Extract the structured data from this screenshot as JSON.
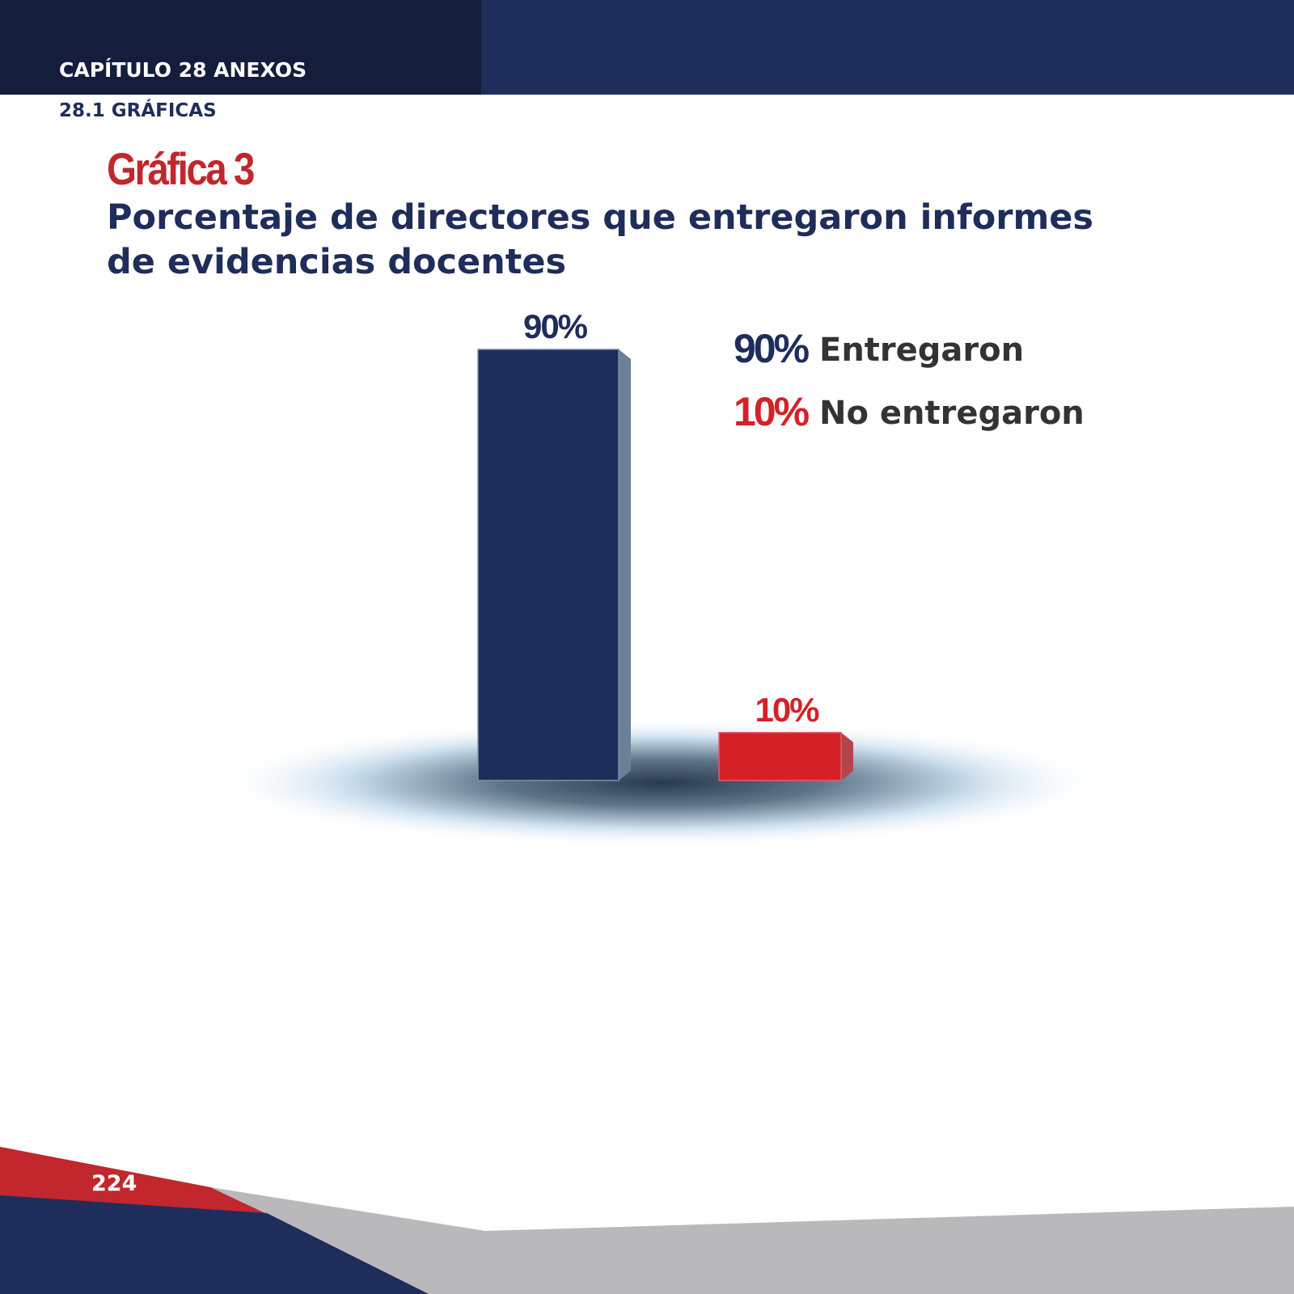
{
  "header": {
    "chapter": "CAPÍTULO 28 ANEXOS",
    "section": "28.1 GRÁFICAS"
  },
  "chart_data": {
    "type": "bar",
    "label": "Gráfica 3",
    "title": "Porcentaje de directores que entregaron informes de evidencias docentes",
    "categories": [
      "Entregaron",
      "No entregaron"
    ],
    "values": [
      90,
      10
    ],
    "value_labels": [
      "90%",
      "10%"
    ],
    "colors": [
      "#1f2d5a",
      "#d42127"
    ]
  },
  "footer": {
    "page": "224"
  }
}
